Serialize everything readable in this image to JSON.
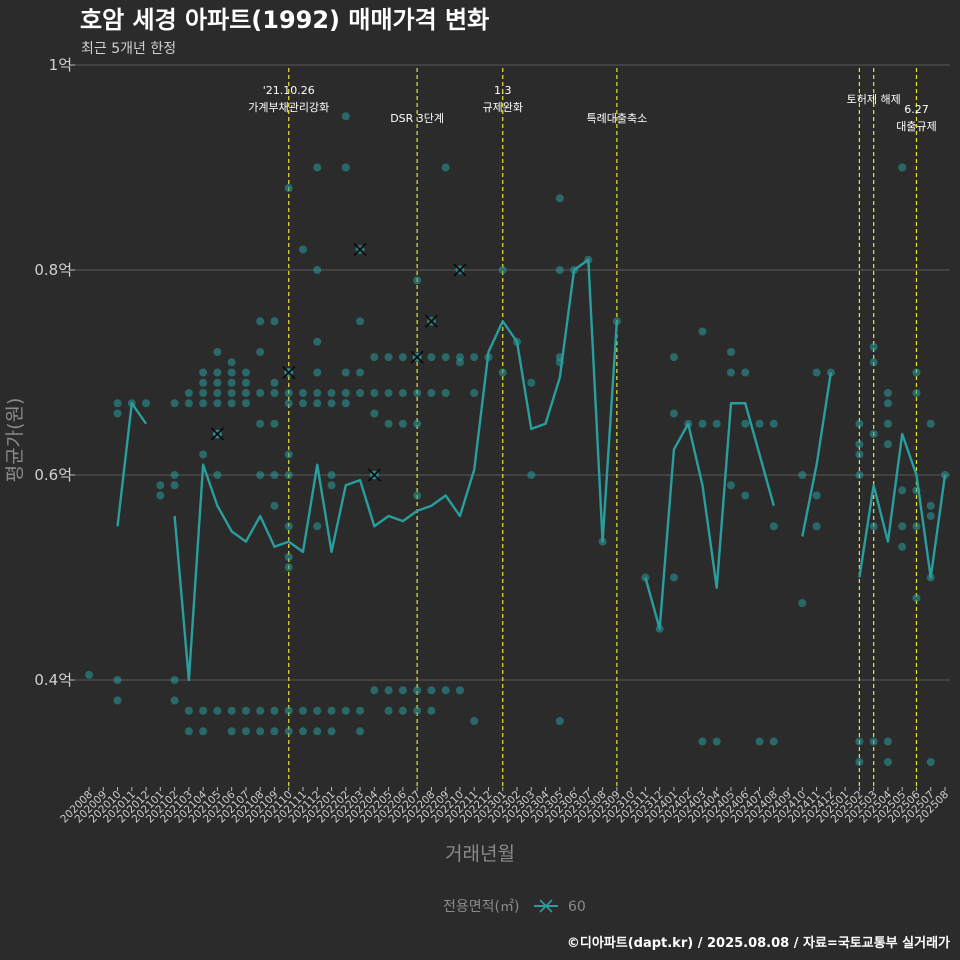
{
  "chart_data": {
    "type": "line",
    "title": "호암 세경 아파트(1992) 매매가격 변화",
    "subtitle": "최근 5개년 한정",
    "xlabel": "거래년월",
    "ylabel": "평균가(원)",
    "ylim": [
      0.28,
      1.0
    ],
    "yticks": [
      {
        "value": 0.4,
        "label": "0.4억"
      },
      {
        "value": 0.6,
        "label": "0.6억"
      },
      {
        "value": 0.8,
        "label": "0.8억"
      },
      {
        "value": 1.0,
        "label": "1억"
      }
    ],
    "grid": true,
    "legend_title": "전용면적(㎡)",
    "legend_position": "bottom",
    "caption": "©디아파트(dapt.kr) / 2025.08.08 / 자료=국토교통부 실거래가",
    "colors": {
      "series": "#2a9d9d",
      "event_line": "#e6e62e",
      "grid": "#5a5a5a",
      "background": "#2b2b2b"
    },
    "categories": [
      "202008",
      "202009",
      "202010",
      "202011",
      "202012",
      "202101",
      "202102",
      "202103",
      "202104",
      "202105",
      "202106",
      "202107",
      "202108",
      "202109",
      "202110",
      "202111",
      "202112",
      "202201",
      "202202",
      "202203",
      "202204",
      "202205",
      "202206",
      "202207",
      "202208",
      "202209",
      "202210",
      "202211",
      "202212",
      "202301",
      "202302",
      "202303",
      "202304",
      "202305",
      "202306",
      "202307",
      "202308",
      "202309",
      "202310",
      "202311",
      "202312",
      "202401",
      "202402",
      "202403",
      "202404",
      "202405",
      "202406",
      "202407",
      "202408",
      "202409",
      "202410",
      "202411",
      "202412",
      "202501",
      "202502",
      "202503",
      "202504",
      "202505",
      "202506",
      "202507",
      "202508"
    ],
    "series": [
      {
        "name": "60",
        "values": [
          null,
          null,
          0.55,
          0.67,
          0.65,
          null,
          0.56,
          0.4,
          0.61,
          0.57,
          0.545,
          0.535,
          0.56,
          0.53,
          0.535,
          0.525,
          0.61,
          0.525,
          0.59,
          0.595,
          0.55,
          0.56,
          0.555,
          0.565,
          0.57,
          0.58,
          0.56,
          0.605,
          0.72,
          0.75,
          0.73,
          0.645,
          0.65,
          0.695,
          0.8,
          0.81,
          0.535,
          0.75,
          null,
          0.5,
          0.45,
          0.625,
          0.65,
          0.59,
          0.49,
          0.67,
          0.67,
          0.62,
          0.57,
          null,
          0.54,
          0.61,
          0.7,
          null,
          0.5,
          0.59,
          0.535,
          0.64,
          0.6,
          0.5,
          0.6
        ],
        "points": [
          [
            0,
            0.405
          ],
          [
            2,
            0.4
          ],
          [
            2,
            0.38
          ],
          [
            2,
            0.67
          ],
          [
            2,
            0.66
          ],
          [
            3,
            0.67
          ],
          [
            4,
            0.67
          ],
          [
            5,
            0.59
          ],
          [
            5,
            0.58
          ],
          [
            6,
            0.4
          ],
          [
            6,
            0.38
          ],
          [
            6,
            0.59
          ],
          [
            6,
            0.6
          ],
          [
            6,
            0.67
          ],
          [
            7,
            0.67
          ],
          [
            7,
            0.68
          ],
          [
            7,
            0.37
          ],
          [
            7,
            0.35
          ],
          [
            8,
            0.37
          ],
          [
            8,
            0.35
          ],
          [
            8,
            0.62
          ],
          [
            8,
            0.67
          ],
          [
            8,
            0.68
          ],
          [
            8,
            0.69
          ],
          [
            8,
            0.7
          ],
          [
            9,
            0.37
          ],
          [
            9,
            0.64
          ],
          [
            9,
            0.6
          ],
          [
            9,
            0.67
          ],
          [
            9,
            0.68
          ],
          [
            9,
            0.69
          ],
          [
            9,
            0.7
          ],
          [
            9,
            0.72
          ],
          [
            10,
            0.35
          ],
          [
            10,
            0.37
          ],
          [
            10,
            0.67
          ],
          [
            10,
            0.68
          ],
          [
            10,
            0.69
          ],
          [
            10,
            0.7
          ],
          [
            10,
            0.71
          ],
          [
            11,
            0.35
          ],
          [
            11,
            0.37
          ],
          [
            11,
            0.67
          ],
          [
            11,
            0.68
          ],
          [
            11,
            0.69
          ],
          [
            11,
            0.7
          ],
          [
            12,
            0.35
          ],
          [
            12,
            0.37
          ],
          [
            12,
            0.6
          ],
          [
            12,
            0.65
          ],
          [
            12,
            0.68
          ],
          [
            12,
            0.72
          ],
          [
            12,
            0.75
          ],
          [
            13,
            0.35
          ],
          [
            13,
            0.37
          ],
          [
            13,
            0.57
          ],
          [
            13,
            0.6
          ],
          [
            13,
            0.65
          ],
          [
            13,
            0.68
          ],
          [
            13,
            0.69
          ],
          [
            13,
            0.75
          ],
          [
            14,
            0.35
          ],
          [
            14,
            0.37
          ],
          [
            14,
            0.51
          ],
          [
            14,
            0.52
          ],
          [
            14,
            0.55
          ],
          [
            14,
            0.6
          ],
          [
            14,
            0.62
          ],
          [
            14,
            0.67
          ],
          [
            14,
            0.68
          ],
          [
            14,
            0.7
          ],
          [
            14,
            0.88
          ],
          [
            15,
            0.35
          ],
          [
            15,
            0.37
          ],
          [
            15,
            0.67
          ],
          [
            15,
            0.68
          ],
          [
            15,
            0.82
          ],
          [
            16,
            0.35
          ],
          [
            16,
            0.37
          ],
          [
            16,
            0.55
          ],
          [
            16,
            0.67
          ],
          [
            16,
            0.68
          ],
          [
            16,
            0.7
          ],
          [
            16,
            0.73
          ],
          [
            16,
            0.8
          ],
          [
            16,
            0.9
          ],
          [
            17,
            0.35
          ],
          [
            17,
            0.37
          ],
          [
            17,
            0.59
          ],
          [
            17,
            0.6
          ],
          [
            17,
            0.67
          ],
          [
            17,
            0.68
          ],
          [
            18,
            0.37
          ],
          [
            18,
            0.67
          ],
          [
            18,
            0.68
          ],
          [
            18,
            0.7
          ],
          [
            18,
            0.9
          ],
          [
            18,
            0.95
          ],
          [
            19,
            0.35
          ],
          [
            19,
            0.37
          ],
          [
            19,
            0.68
          ],
          [
            19,
            0.7
          ],
          [
            19,
            0.75
          ],
          [
            20,
            0.39
          ],
          [
            20,
            0.6
          ],
          [
            20,
            0.66
          ],
          [
            20,
            0.68
          ],
          [
            20,
            0.715
          ],
          [
            21,
            0.37
          ],
          [
            21,
            0.39
          ],
          [
            21,
            0.65
          ],
          [
            21,
            0.68
          ],
          [
            21,
            0.715
          ],
          [
            22,
            0.37
          ],
          [
            22,
            0.39
          ],
          [
            22,
            0.65
          ],
          [
            22,
            0.68
          ],
          [
            22,
            0.715
          ],
          [
            23,
            0.37
          ],
          [
            23,
            0.39
          ],
          [
            23,
            0.58
          ],
          [
            23,
            0.65
          ],
          [
            23,
            0.68
          ],
          [
            23,
            0.715
          ],
          [
            23,
            0.79
          ],
          [
            24,
            0.37
          ],
          [
            24,
            0.39
          ],
          [
            24,
            0.68
          ],
          [
            24,
            0.715
          ],
          [
            25,
            0.39
          ],
          [
            25,
            0.68
          ],
          [
            25,
            0.715
          ],
          [
            25,
            0.9
          ],
          [
            26,
            0.39
          ],
          [
            26,
            0.71
          ],
          [
            26,
            0.715
          ],
          [
            27,
            0.36
          ],
          [
            27,
            0.68
          ],
          [
            27,
            0.715
          ],
          [
            28,
            0.715
          ],
          [
            29,
            0.7
          ],
          [
            29,
            0.8
          ],
          [
            30,
            0.73
          ],
          [
            31,
            0.6
          ],
          [
            31,
            0.69
          ],
          [
            33,
            0.36
          ],
          [
            33,
            0.71
          ],
          [
            33,
            0.715
          ],
          [
            33,
            0.8
          ],
          [
            33,
            0.87
          ],
          [
            34,
            0.8
          ],
          [
            35,
            0.81
          ],
          [
            36,
            0.535
          ],
          [
            37,
            0.75
          ],
          [
            39,
            0.5
          ],
          [
            40,
            0.45
          ],
          [
            41,
            0.5
          ],
          [
            41,
            0.66
          ],
          [
            41,
            0.715
          ],
          [
            42,
            0.65
          ],
          [
            43,
            0.34
          ],
          [
            43,
            0.65
          ],
          [
            43,
            0.74
          ],
          [
            44,
            0.34
          ],
          [
            44,
            0.65
          ],
          [
            45,
            0.59
          ],
          [
            45,
            0.7
          ],
          [
            45,
            0.72
          ],
          [
            46,
            0.58
          ],
          [
            46,
            0.65
          ],
          [
            46,
            0.7
          ],
          [
            47,
            0.34
          ],
          [
            47,
            0.65
          ],
          [
            48,
            0.34
          ],
          [
            48,
            0.55
          ],
          [
            48,
            0.65
          ],
          [
            50,
            0.475
          ],
          [
            50,
            0.6
          ],
          [
            51,
            0.55
          ],
          [
            51,
            0.58
          ],
          [
            51,
            0.7
          ],
          [
            52,
            0.7
          ],
          [
            54,
            0.32
          ],
          [
            54,
            0.34
          ],
          [
            54,
            0.6
          ],
          [
            54,
            0.62
          ],
          [
            54,
            0.63
          ],
          [
            54,
            0.65
          ],
          [
            55,
            0.34
          ],
          [
            55,
            0.55
          ],
          [
            55,
            0.64
          ],
          [
            55,
            0.71
          ],
          [
            55,
            0.725
          ],
          [
            56,
            0.32
          ],
          [
            56,
            0.34
          ],
          [
            56,
            0.63
          ],
          [
            56,
            0.65
          ],
          [
            56,
            0.67
          ],
          [
            56,
            0.68
          ],
          [
            57,
            0.53
          ],
          [
            57,
            0.55
          ],
          [
            57,
            0.585
          ],
          [
            57,
            0.9
          ],
          [
            58,
            0.48
          ],
          [
            58,
            0.55
          ],
          [
            58,
            0.585
          ],
          [
            58,
            0.68
          ],
          [
            58,
            0.7
          ],
          [
            59,
            0.32
          ],
          [
            59,
            0.5
          ],
          [
            59,
            0.56
          ],
          [
            59,
            0.57
          ],
          [
            59,
            0.65
          ],
          [
            60,
            0.6
          ]
        ],
        "highlights": [
          [
            9,
            0.64
          ],
          [
            14,
            0.7
          ],
          [
            19,
            0.82
          ],
          [
            20,
            0.6
          ],
          [
            23,
            0.715
          ],
          [
            24,
            0.75
          ],
          [
            26,
            0.8
          ]
        ]
      }
    ],
    "events": [
      {
        "x": "202110",
        "label_lines": [
          "'21.10.26",
          "가계부채관리강화"
        ]
      },
      {
        "x": "202207",
        "label_lines": [
          "DSR 3단계"
        ]
      },
      {
        "x": "202301",
        "label_lines": [
          "1.3",
          "규제완화"
        ]
      },
      {
        "x": "202309",
        "label_lines": [
          "특례대출축소"
        ]
      },
      {
        "x": "202502",
        "label_lines": []
      },
      {
        "x": "202503",
        "label_lines": [
          "토허제 해제"
        ]
      },
      {
        "x": "202506",
        "label_lines": [
          "6.27",
          "대출규제"
        ]
      }
    ]
  }
}
